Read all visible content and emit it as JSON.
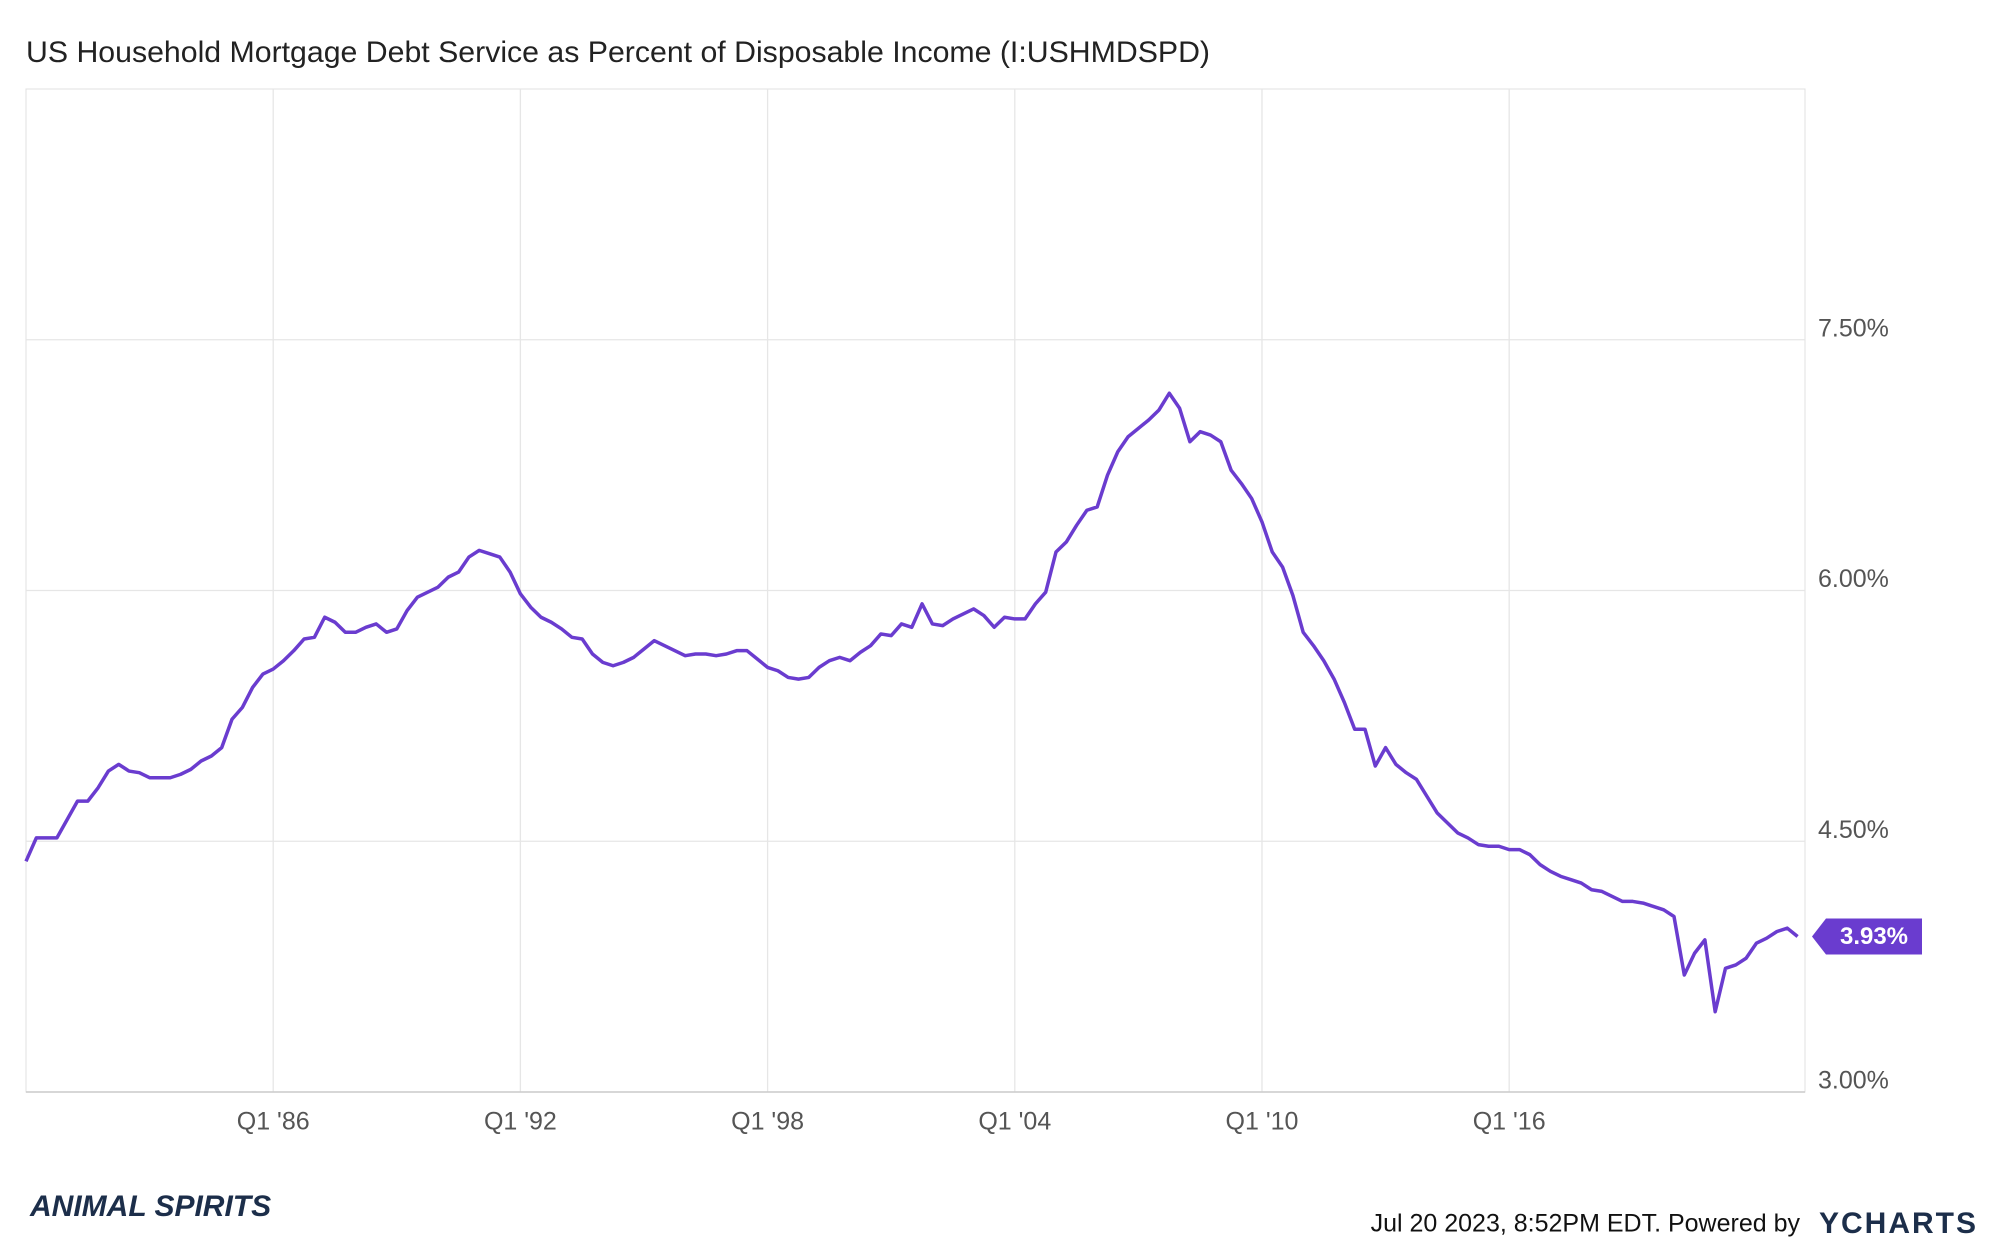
{
  "chart_data": {
    "type": "line",
    "title": "US Household Mortgage Debt Service as Percent of Disposable Income (I:USHMDSPD)",
    "x": [
      1980,
      1980.25,
      1980.5,
      1980.75,
      1981,
      1981.25,
      1981.5,
      1981.75,
      1982,
      1982.25,
      1982.5,
      1982.75,
      1983,
      1983.25,
      1983.5,
      1983.75,
      1984,
      1984.25,
      1984.5,
      1984.75,
      1985,
      1985.25,
      1985.5,
      1985.75,
      1986,
      1986.25,
      1986.5,
      1986.75,
      1987,
      1987.25,
      1987.5,
      1987.75,
      1988,
      1988.25,
      1988.5,
      1988.75,
      1989,
      1989.25,
      1989.5,
      1989.75,
      1990,
      1990.25,
      1990.5,
      1990.75,
      1991,
      1991.25,
      1991.5,
      1991.75,
      1992,
      1992.25,
      1992.5,
      1992.75,
      1993,
      1993.25,
      1993.5,
      1993.75,
      1994,
      1994.25,
      1994.5,
      1994.75,
      1995,
      1995.25,
      1995.5,
      1995.75,
      1996,
      1996.25,
      1996.5,
      1996.75,
      1997,
      1997.25,
      1997.5,
      1997.75,
      1998,
      1998.25,
      1998.5,
      1998.75,
      1999,
      1999.25,
      1999.5,
      1999.75,
      2000,
      2000.25,
      2000.5,
      2000.75,
      2001,
      2001.25,
      2001.5,
      2001.75,
      2002,
      2002.25,
      2002.5,
      2002.75,
      2003,
      2003.25,
      2003.5,
      2003.75,
      2004,
      2004.25,
      2004.5,
      2004.75,
      2005,
      2005.25,
      2005.5,
      2005.75,
      2006,
      2006.25,
      2006.5,
      2006.75,
      2007,
      2007.25,
      2007.5,
      2007.75,
      2008,
      2008.25,
      2008.5,
      2008.75,
      2009,
      2009.25,
      2009.5,
      2009.75,
      2010,
      2010.25,
      2010.5,
      2010.75,
      2011,
      2011.25,
      2011.5,
      2011.75,
      2012,
      2012.25,
      2012.5,
      2012.75,
      2013,
      2013.25,
      2013.5,
      2013.75,
      2014,
      2014.25,
      2014.5,
      2014.75,
      2015,
      2015.25,
      2015.5,
      2015.75,
      2016,
      2016.25,
      2016.5,
      2016.75,
      2017,
      2017.25,
      2017.5,
      2017.75,
      2018,
      2018.25,
      2018.5,
      2018.75,
      2019,
      2019.25,
      2019.5,
      2019.75,
      2020,
      2020.25,
      2020.5,
      2020.75,
      2021,
      2021.25,
      2021.5,
      2021.75,
      2022,
      2022.25,
      2022.5,
      2022.75,
      2023
    ],
    "series": [
      {
        "name": "US Household Mortgage Debt Service as Percent of Disposable Income",
        "color": "#6a3ccf",
        "values": [
          4.38,
          4.52,
          4.52,
          4.52,
          4.63,
          4.74,
          4.74,
          4.82,
          4.92,
          4.96,
          4.92,
          4.91,
          4.88,
          4.88,
          4.88,
          4.9,
          4.93,
          4.98,
          5.01,
          5.06,
          5.23,
          5.3,
          5.42,
          5.5,
          5.53,
          5.58,
          5.64,
          5.71,
          5.72,
          5.84,
          5.81,
          5.75,
          5.75,
          5.78,
          5.8,
          5.75,
          5.77,
          5.88,
          5.96,
          5.99,
          6.02,
          6.08,
          6.11,
          6.2,
          6.24,
          6.22,
          6.2,
          6.11,
          5.98,
          5.9,
          5.84,
          5.81,
          5.77,
          5.72,
          5.71,
          5.62,
          5.57,
          5.55,
          5.57,
          5.6,
          5.65,
          5.7,
          5.67,
          5.64,
          5.61,
          5.62,
          5.62,
          5.61,
          5.62,
          5.64,
          5.64,
          5.59,
          5.54,
          5.52,
          5.48,
          5.47,
          5.48,
          5.54,
          5.58,
          5.6,
          5.58,
          5.63,
          5.67,
          5.74,
          5.73,
          5.8,
          5.78,
          5.92,
          5.8,
          5.79,
          5.83,
          5.86,
          5.89,
          5.85,
          5.78,
          5.84,
          5.83,
          5.83,
          5.92,
          5.99,
          6.23,
          6.29,
          6.39,
          6.48,
          6.5,
          6.69,
          6.83,
          6.92,
          6.97,
          7.02,
          7.08,
          7.18,
          7.09,
          6.89,
          6.95,
          6.93,
          6.89,
          6.72,
          6.64,
          6.55,
          6.41,
          6.23,
          6.14,
          5.97,
          5.75,
          5.67,
          5.58,
          5.47,
          5.33,
          5.17,
          5.17,
          4.95,
          5.06,
          4.96,
          4.91,
          4.87,
          4.77,
          4.67,
          4.61,
          4.55,
          4.52,
          4.48,
          4.47,
          4.47,
          4.45,
          4.45,
          4.42,
          4.36,
          4.32,
          4.29,
          4.27,
          4.25,
          4.21,
          4.2,
          4.17,
          4.14,
          4.14,
          4.13,
          4.11,
          4.09,
          4.05,
          3.7,
          3.83,
          3.91,
          3.48,
          3.74,
          3.76,
          3.8,
          3.89,
          3.92,
          3.96,
          3.98,
          3.93
        ]
      }
    ],
    "annotations": [
      {
        "value": 3.93,
        "label": "3.93%"
      }
    ],
    "xlim": [
      1980,
      2023.18
    ],
    "xticks": [
      {
        "value": 1986,
        "label": "Q1 '86"
      },
      {
        "value": 1992,
        "label": "Q1 '92"
      },
      {
        "value": 1998,
        "label": "Q1 '98"
      },
      {
        "value": 2004,
        "label": "Q1 '04"
      },
      {
        "value": 2010,
        "label": "Q1 '10"
      },
      {
        "value": 2016,
        "label": "Q1 '16"
      }
    ],
    "ylim": [
      3,
      9
    ],
    "yticks": [
      {
        "value": 3,
        "label": "3.00%"
      },
      {
        "value": 4.5,
        "label": "4.50%"
      },
      {
        "value": 6,
        "label": "6.00%"
      },
      {
        "value": 7.5,
        "label": "7.50%"
      }
    ],
    "grid": true
  },
  "footer": {
    "brand": "ANIMAL SPIRITS",
    "timestamp": "Jul 20 2023, 8:52PM EDT. Powered by",
    "logo": "YCHARTS"
  }
}
